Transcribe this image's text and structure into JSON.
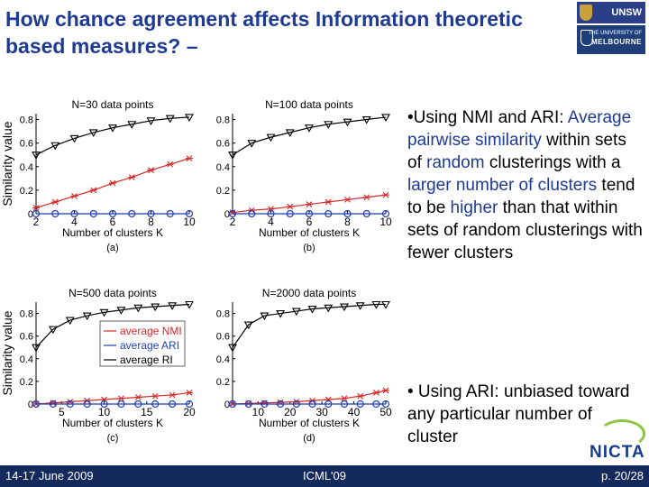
{
  "slide": {
    "title": "How chance agreement affects Information theoretic based measures? –",
    "logos": {
      "unsw": "UNSW",
      "melbourne_line1": "THE UNIVERSITY OF",
      "melbourne_line2": "MELBOURNE",
      "nicta": "NICTA"
    },
    "footer": {
      "date": "14-17 June 2009",
      "venue": "ICML'09",
      "page": "p. 20/28"
    }
  },
  "bullets": {
    "b1": {
      "p1": "•Using NMI and ARI: ",
      "p2": "Average pairwise similarity",
      "p3": " within sets of ",
      "p4": "random",
      "p5": " clusterings with a ",
      "p6": "larger number of clusters",
      "p7": " tend to be ",
      "p8": "higher",
      "p9": " than that within sets of random clusterings with fewer clusters"
    },
    "b2": "• Using ARI: unbiased toward any particular number of cluster"
  },
  "legend": [
    "average NMI",
    "average ARI",
    "average RI"
  ],
  "colors": {
    "title": "#1f3a93",
    "nmi": "#d62728",
    "ari": "#1f3fb4",
    "ri": "#000000",
    "footer": "#142a5c"
  },
  "chart_data": [
    {
      "type": "line",
      "panel_label": "(a)",
      "title": "N=30 data points",
      "xlabel": "Number of clusters K",
      "ylabel": "Similarity value",
      "x": [
        2,
        3,
        4,
        5,
        6,
        7,
        8,
        9,
        10
      ],
      "xticks": [
        "2",
        "4",
        "6",
        "8",
        "10"
      ],
      "yticks": [
        "0",
        "0.2",
        "0.4",
        "0.6",
        "0.8"
      ],
      "xlim": [
        2,
        10
      ],
      "ylim": [
        0,
        0.85
      ],
      "series": [
        {
          "name": "average NMI",
          "values": [
            0.05,
            0.1,
            0.15,
            0.2,
            0.26,
            0.31,
            0.37,
            0.42,
            0.47
          ]
        },
        {
          "name": "average ARI",
          "values": [
            0,
            0,
            0,
            0,
            0,
            0,
            0,
            0,
            0
          ]
        },
        {
          "name": "average RI",
          "values": [
            0.5,
            0.58,
            0.64,
            0.69,
            0.73,
            0.76,
            0.79,
            0.81,
            0.82
          ]
        }
      ]
    },
    {
      "type": "line",
      "panel_label": "(b)",
      "title": "N=100 data points",
      "xlabel": "Number of clusters K",
      "ylabel": "",
      "x": [
        2,
        3,
        4,
        5,
        6,
        7,
        8,
        9,
        10
      ],
      "xticks": [
        "2",
        "4",
        "6",
        "8",
        "10"
      ],
      "yticks": [
        "0",
        "0.2",
        "0.4",
        "0.6",
        "0.8"
      ],
      "xlim": [
        2,
        10
      ],
      "ylim": [
        0,
        0.85
      ],
      "series": [
        {
          "name": "average NMI",
          "values": [
            0.01,
            0.03,
            0.04,
            0.06,
            0.08,
            0.1,
            0.12,
            0.14,
            0.16
          ]
        },
        {
          "name": "average ARI",
          "values": [
            0,
            0,
            0,
            0,
            0,
            0,
            0,
            0,
            0
          ]
        },
        {
          "name": "average RI",
          "values": [
            0.5,
            0.6,
            0.65,
            0.69,
            0.73,
            0.76,
            0.78,
            0.8,
            0.82
          ]
        }
      ]
    },
    {
      "type": "line",
      "panel_label": "(c)",
      "title": "N=500 data points",
      "xlabel": "Number of clusters K",
      "ylabel": "Similarity value",
      "x": [
        2,
        4,
        6,
        8,
        10,
        12,
        14,
        16,
        18,
        20
      ],
      "xticks": [
        "5",
        "10",
        "15",
        "20"
      ],
      "yticks": [
        "0",
        "0.2",
        "0.4",
        "0.6",
        "0.8"
      ],
      "xlim": [
        2,
        20
      ],
      "ylim": [
        0,
        0.9
      ],
      "series": [
        {
          "name": "average NMI",
          "values": [
            0.0,
            0.01,
            0.02,
            0.03,
            0.04,
            0.05,
            0.06,
            0.07,
            0.08,
            0.1
          ]
        },
        {
          "name": "average ARI",
          "values": [
            0,
            0,
            0,
            0,
            0,
            0,
            0,
            0,
            0,
            0
          ]
        },
        {
          "name": "average RI",
          "values": [
            0.5,
            0.66,
            0.74,
            0.78,
            0.81,
            0.83,
            0.85,
            0.86,
            0.87,
            0.88
          ]
        }
      ]
    },
    {
      "type": "line",
      "panel_label": "(d)",
      "title": "N=2000 data points",
      "xlabel": "Number of clusters K",
      "ylabel": "",
      "x": [
        2,
        7,
        12,
        17,
        22,
        27,
        32,
        37,
        42,
        47,
        50
      ],
      "xticks": [
        "10",
        "20",
        "30",
        "40",
        "50"
      ],
      "yticks": [
        "0",
        "0.2",
        "0.4",
        "0.6",
        "0.8"
      ],
      "xlim": [
        2,
        50
      ],
      "ylim": [
        0,
        0.9
      ],
      "series": [
        {
          "name": "average NMI",
          "values": [
            0.0,
            0.005,
            0.01,
            0.015,
            0.02,
            0.03,
            0.04,
            0.05,
            0.07,
            0.1,
            0.12
          ]
        },
        {
          "name": "average ARI",
          "values": [
            0,
            0,
            0,
            0,
            0,
            0,
            0,
            0,
            0,
            0,
            0
          ]
        },
        {
          "name": "average RI",
          "values": [
            0.5,
            0.7,
            0.78,
            0.8,
            0.82,
            0.84,
            0.85,
            0.86,
            0.87,
            0.88,
            0.88
          ]
        }
      ]
    }
  ]
}
